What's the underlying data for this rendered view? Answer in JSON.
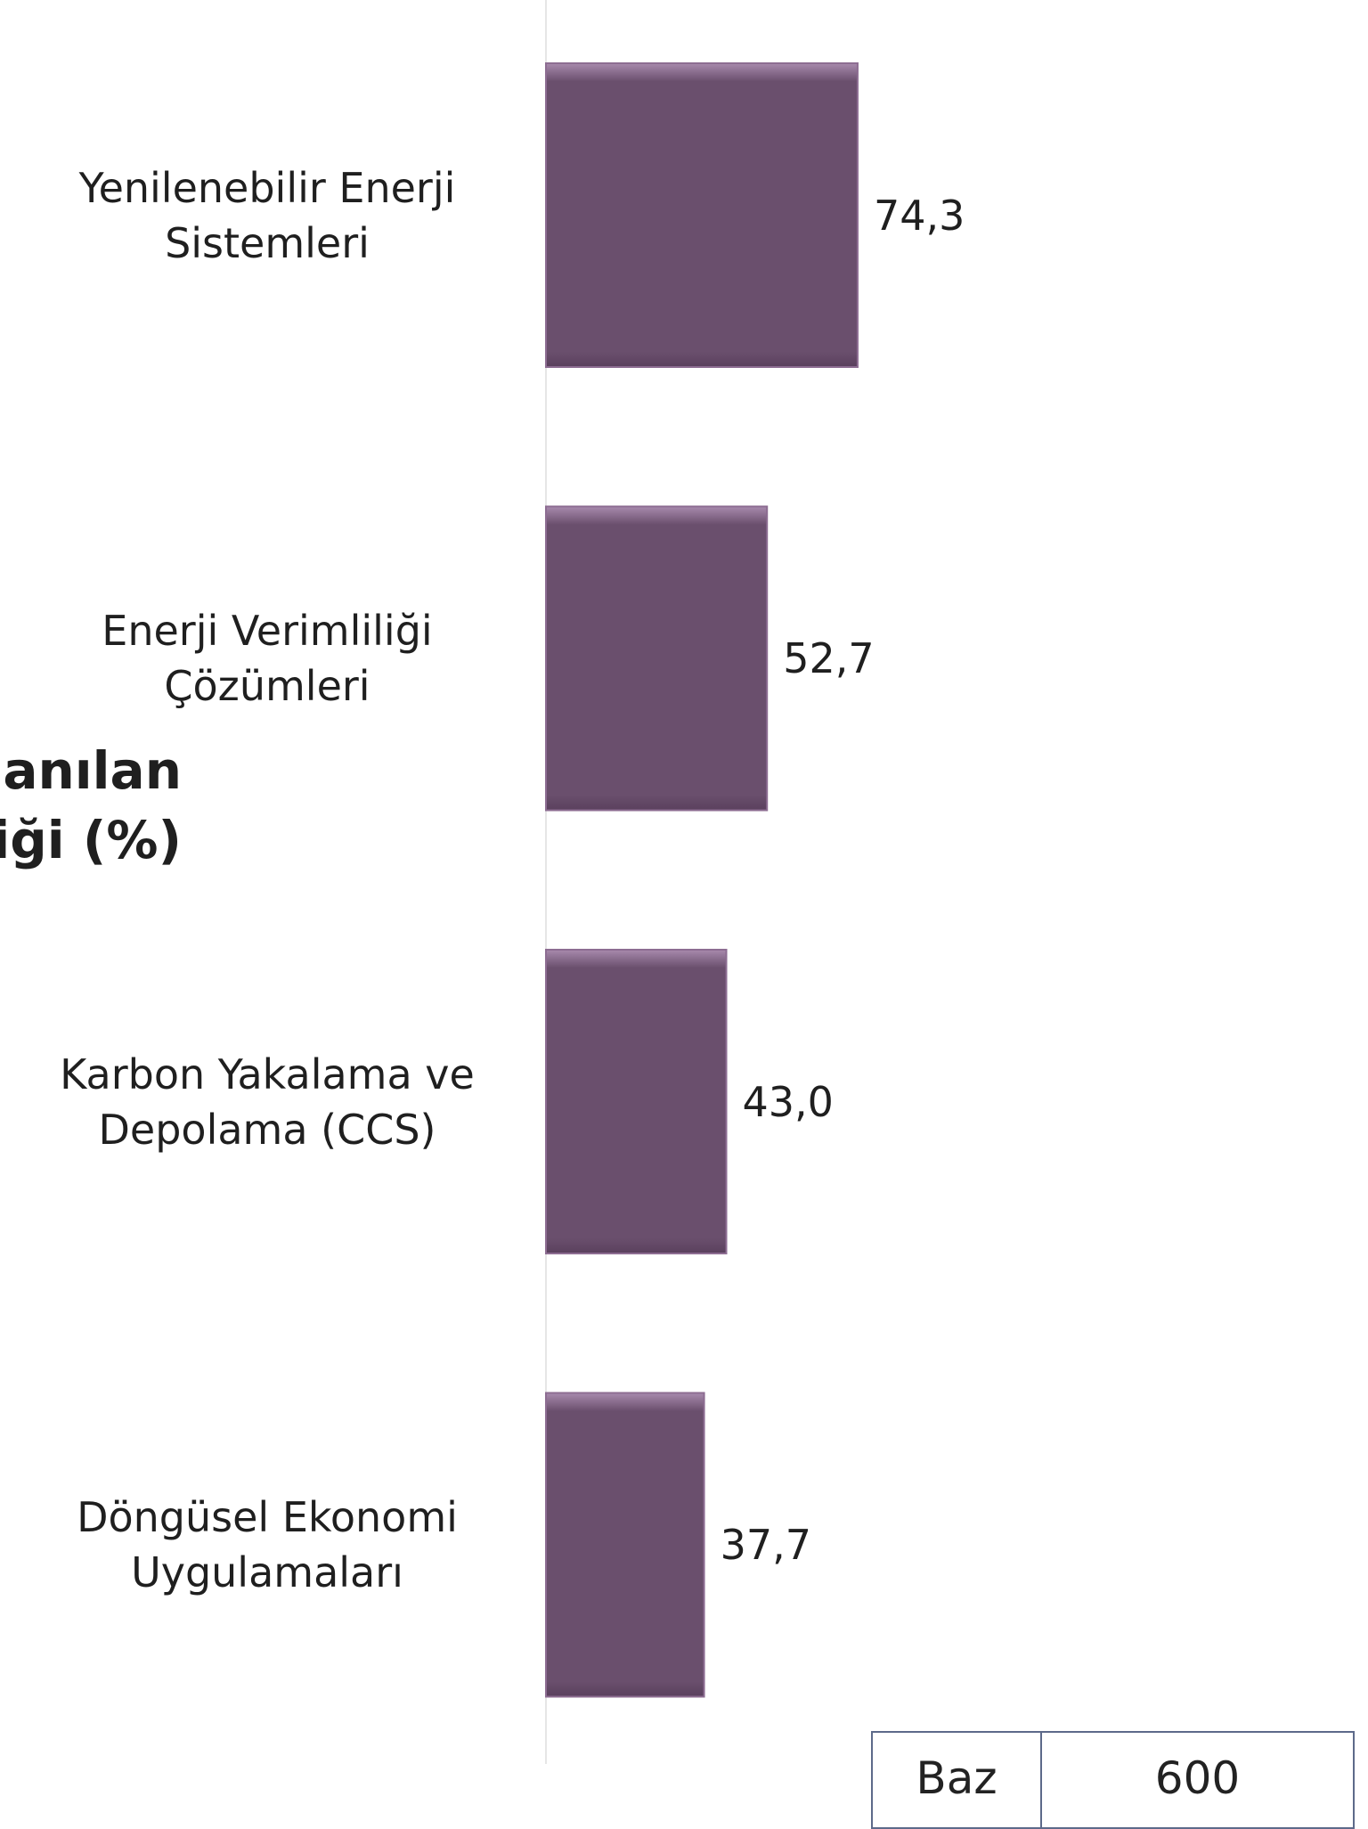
{
  "chart_data": {
    "type": "bar",
    "orientation": "horizontal",
    "title": [
      "lanılan",
      "liği (%)"
    ],
    "categories": [
      "Yenilenebilir Enerji Sistemleri",
      "Enerji Verimliliği Çözümleri",
      "Karbon Yakalama ve Depolama (CCS)",
      "Döngüsel Ekonomi Uygulamaları"
    ],
    "values": [
      74.3,
      52.7,
      43.0,
      37.7
    ],
    "value_labels": [
      "74,3",
      "52,7",
      "43,0",
      "37,7"
    ],
    "color": "#6a4f6d",
    "xlim": [
      0,
      100
    ]
  },
  "base_table": {
    "label": "Baz",
    "value": 600
  }
}
